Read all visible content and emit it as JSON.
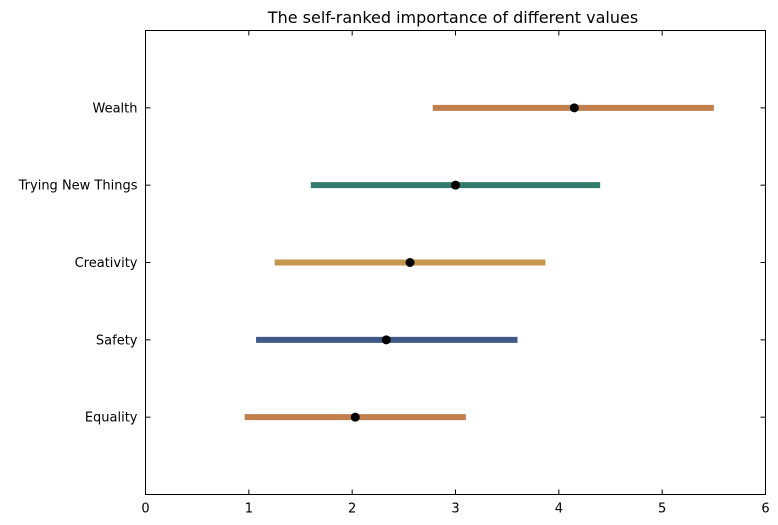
{
  "chart_data": {
    "type": "errorbar",
    "title": "The self-ranked importance of different values",
    "xlabel": "",
    "ylabel": "",
    "xlim": [
      0,
      6
    ],
    "x_ticks": [
      "0",
      "1",
      "2",
      "3",
      "4",
      "5",
      "6"
    ],
    "x_tick_values": [
      0,
      1,
      2,
      3,
      4,
      5,
      6
    ],
    "grid": false,
    "legend": "none",
    "categories": [
      "Equality",
      "Safety",
      "Creativity",
      "Trying New Things",
      "Wealth"
    ],
    "series": [
      {
        "category": "Equality",
        "mean": 2.03,
        "low": 0.96,
        "high": 3.1,
        "color": "#c17f4e"
      },
      {
        "category": "Safety",
        "mean": 2.33,
        "low": 1.07,
        "high": 3.6,
        "color": "#3f5a86"
      },
      {
        "category": "Creativity",
        "mean": 2.56,
        "low": 1.25,
        "high": 3.87,
        "color": "#c5974e"
      },
      {
        "category": "Trying New Things",
        "mean": 3.0,
        "low": 1.6,
        "high": 4.4,
        "color": "#327a6e"
      },
      {
        "category": "Wealth",
        "mean": 4.15,
        "low": 2.78,
        "high": 5.5,
        "color": "#c17f4e"
      }
    ],
    "marker_color": "#000000"
  }
}
